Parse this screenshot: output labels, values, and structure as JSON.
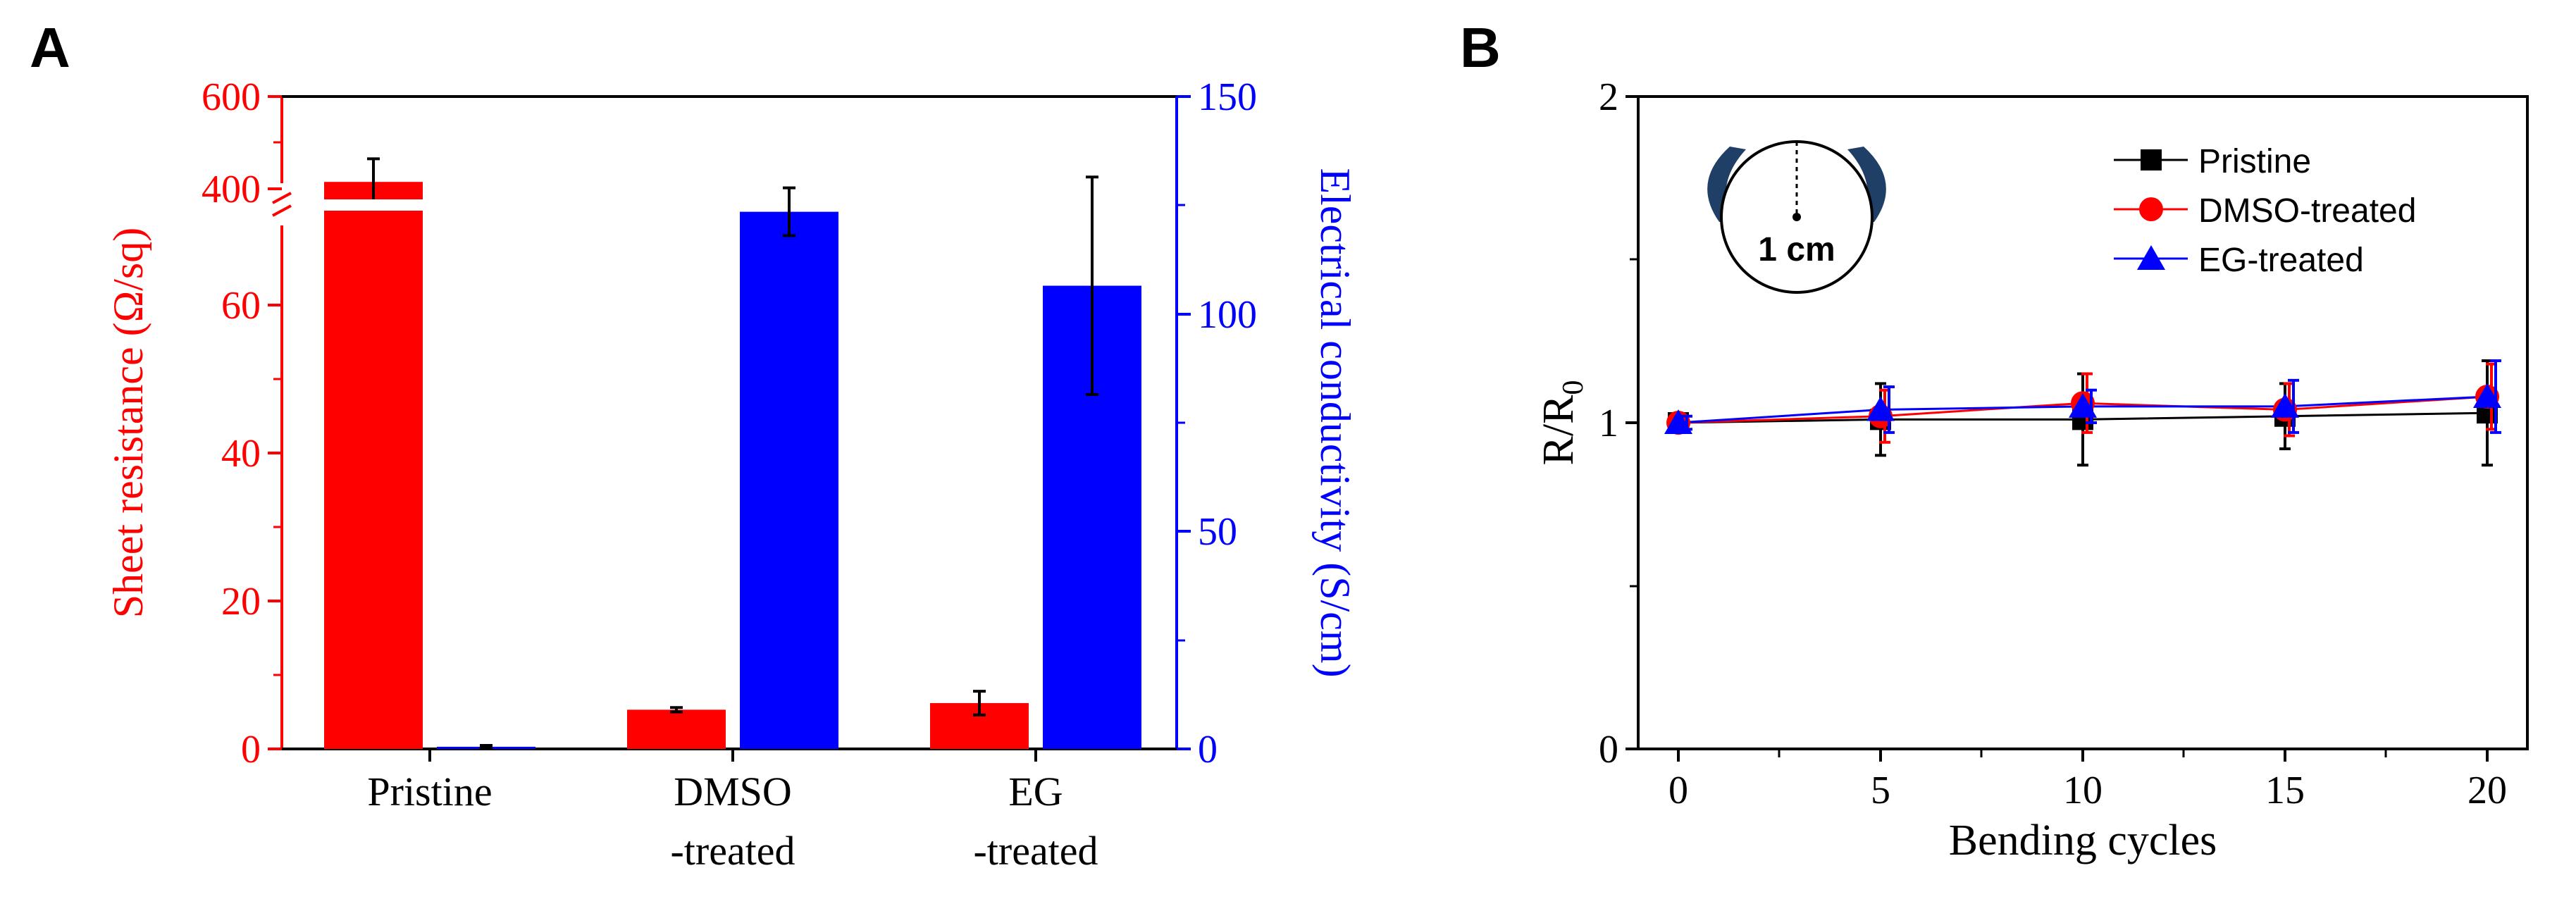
{
  "panelA": {
    "label": "A",
    "left_axis_title": "Sheet resistance (Ω/sq)",
    "right_axis_title": "Electrical conductivity (S/cm)",
    "left_color": "#ff0000",
    "right_color": "#0000ff",
    "left_ticks_lower": [
      "0",
      "20",
      "40",
      "60"
    ],
    "left_ticks_upper": [
      "400",
      "600"
    ],
    "right_ticks": [
      "0",
      "50",
      "100",
      "150"
    ],
    "category_line1": [
      "Pristine",
      "DMSO",
      "EG"
    ],
    "category_line2": [
      "",
      "-treated",
      "-treated"
    ]
  },
  "panelB": {
    "label": "B",
    "xlabel": "Bending cycles",
    "ylabel_main": "R/R",
    "ylabel_sub": "0",
    "xticks": [
      "0",
      "5",
      "10",
      "15",
      "20"
    ],
    "yticks": [
      "0",
      "1",
      "2"
    ],
    "inset_label": "1 cm",
    "legend": [
      "Pristine",
      "DMSO-treated",
      "EG-treated"
    ]
  },
  "chart_data": [
    {
      "type": "bar",
      "title": "",
      "categories": [
        "Pristine",
        "DMSO -treated",
        "EG -treated"
      ],
      "xlabel": "",
      "ylabel": "Sheet resistance (Ω/sq)",
      "y2label": "Electrical conductivity (S/cm)",
      "ylim_lower_segment": [
        0,
        70
      ],
      "ylim_upper_segment": [
        350,
        600
      ],
      "y2lim": [
        0,
        150
      ],
      "series": [
        {
          "name": "Sheet resistance",
          "axis": "left",
          "color": "#ff0000",
          "values": [
            415,
            5.3,
            6.2
          ],
          "errors": [
            50,
            0.3,
            1.6
          ]
        },
        {
          "name": "Electrical conductivity",
          "axis": "right",
          "color": "#0000ff",
          "values": [
            0.5,
            123.5,
            106.5
          ],
          "errors": [
            0.3,
            5.5,
            25
          ]
        }
      ]
    },
    {
      "type": "line",
      "title": "",
      "xlabel": "Bending cycles",
      "ylabel": "R/R0",
      "xlim": [
        -1,
        21
      ],
      "ylim": [
        0,
        2
      ],
      "x": [
        0,
        5,
        10,
        15,
        20
      ],
      "legend_position": "top-right",
      "series": [
        {
          "name": "Pristine",
          "marker": "square",
          "color": "#000000",
          "values": [
            1.0,
            1.01,
            1.01,
            1.02,
            1.03
          ],
          "errors": [
            0.02,
            0.11,
            0.14,
            0.1,
            0.16
          ]
        },
        {
          "name": "DMSO-treated",
          "marker": "circle",
          "color": "#ff0000",
          "values": [
            1.0,
            1.02,
            1.06,
            1.04,
            1.08
          ],
          "errors": [
            0.02,
            0.08,
            0.09,
            0.08,
            0.1
          ]
        },
        {
          "name": "EG-treated",
          "marker": "triangle",
          "color": "#0000ff",
          "values": [
            1.0,
            1.04,
            1.05,
            1.05,
            1.08
          ],
          "errors": [
            0.02,
            0.07,
            0.05,
            0.08,
            0.11
          ]
        }
      ]
    }
  ]
}
